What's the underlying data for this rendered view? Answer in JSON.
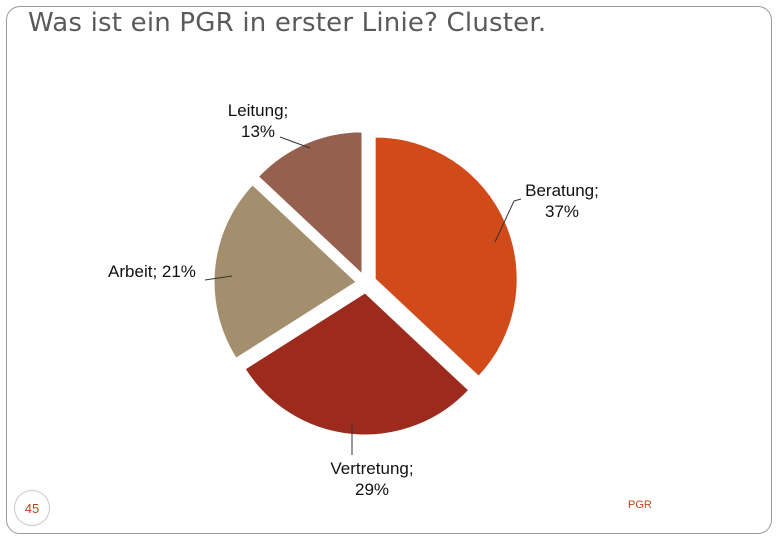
{
  "slide": {
    "title": "Was ist ein PGR in erster Linie? Cluster.",
    "page_number": "45",
    "footer": "PGR"
  },
  "chart_data": {
    "type": "pie",
    "title": "",
    "exploded": true,
    "start_angle_deg": 0,
    "direction": "clockwise",
    "slices": [
      {
        "name": "Beratung",
        "value": 37,
        "label_line1": "Beratung;",
        "label_line2": "37%",
        "color": "#d14a1a"
      },
      {
        "name": "Vertretung",
        "value": 29,
        "label_line1": "Vertretung;",
        "label_line2": "29%",
        "color": "#9c2b1d"
      },
      {
        "name": "Arbeit",
        "value": 21,
        "label_line1": "Arbeit; 21%",
        "label_line2": "",
        "color": "#a38f6e"
      },
      {
        "name": "Leitung",
        "value": 13,
        "label_line1": "Leitung;",
        "label_line2": "13%",
        "color": "#96604e"
      }
    ],
    "legend": "none"
  }
}
